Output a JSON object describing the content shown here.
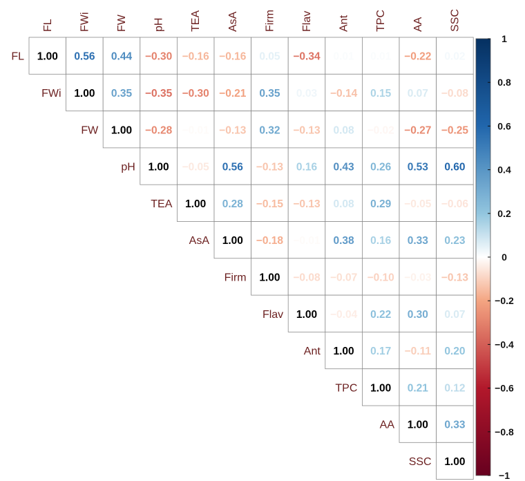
{
  "chart_data": {
    "type": "heatmap",
    "variables": [
      "FL",
      "FWi",
      "FW",
      "pH",
      "TEA",
      "AsA",
      "Firm",
      "Flav",
      "Ant",
      "TPC",
      "AA",
      "SSC"
    ],
    "matrix_layout": "upper-triangle",
    "rows": [
      [
        1.0,
        0.56,
        0.44,
        -0.3,
        -0.16,
        -0.16,
        0.05,
        -0.34,
        0.01,
        0.01,
        -0.22,
        0.02
      ],
      [
        1.0,
        0.35,
        -0.35,
        -0.3,
        -0.21,
        0.35,
        0.03,
        -0.14,
        0.15,
        0.07,
        -0.08
      ],
      [
        1.0,
        -0.28,
        -0.01,
        -0.13,
        0.32,
        -0.13,
        0.08,
        -0.02,
        -0.27,
        -0.25
      ],
      [
        1.0,
        -0.05,
        0.56,
        -0.13,
        0.16,
        0.43,
        0.26,
        0.53,
        0.6
      ],
      [
        1.0,
        0.28,
        -0.15,
        -0.13,
        0.08,
        0.29,
        -0.05,
        -0.06
      ],
      [
        1.0,
        -0.18,
        -0.01,
        0.38,
        0.16,
        0.33,
        0.23
      ],
      [
        1.0,
        -0.08,
        -0.07,
        -0.1,
        -0.03,
        -0.13
      ],
      [
        1.0,
        -0.04,
        0.22,
        0.3,
        0.07
      ],
      [
        1.0,
        0.17,
        -0.11,
        0.2
      ],
      [
        1.0,
        0.21,
        0.12
      ],
      [
        1.0,
        0.33
      ],
      [
        1.0
      ]
    ],
    "colorbar": {
      "range": [
        -1,
        1
      ],
      "ticks": [
        "1",
        "0.8",
        "0.6",
        "0.4",
        "0.2",
        "0",
        "−0.2",
        "−0.4",
        "−0.6",
        "−0.8",
        "−1"
      ],
      "colors": {
        "neg1": "#67001f",
        "neg06": "#b2182b",
        "neg02": "#f4a582",
        "zero": "#ffffff",
        "pos02": "#92c5de",
        "pos06": "#2166ac",
        "pos1": "#053061"
      }
    },
    "label_color": "#6b1f1f",
    "diagonal_color": "#000000"
  }
}
